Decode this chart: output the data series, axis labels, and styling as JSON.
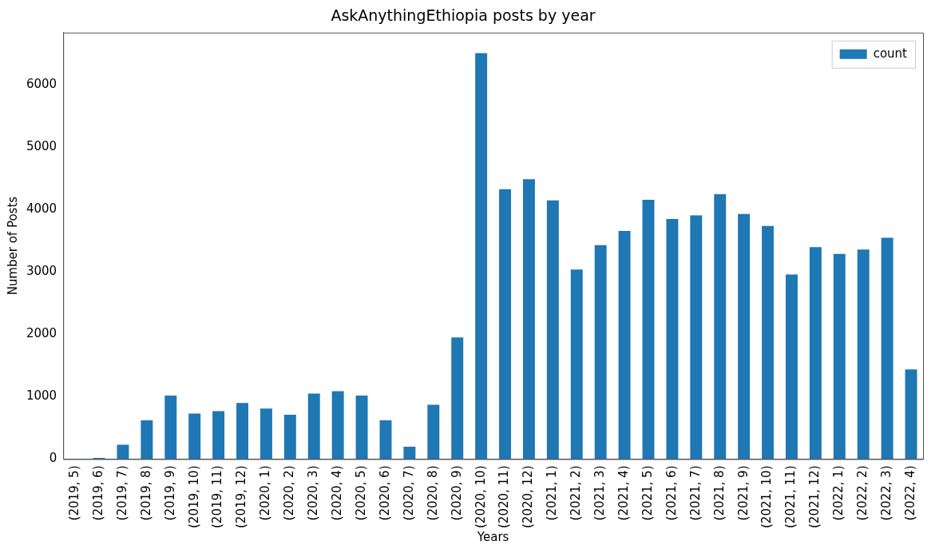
{
  "chart_data": {
    "type": "bar",
    "title": "AskAnythingEthiopia posts by year",
    "xlabel": "Years",
    "ylabel": "Number of Posts",
    "categories": [
      "(2019, 5)",
      "(2019, 6)",
      "(2019, 7)",
      "(2019, 8)",
      "(2019, 9)",
      "(2019, 10)",
      "(2019, 11)",
      "(2019, 12)",
      "(2020, 1)",
      "(2020, 2)",
      "(2020, 3)",
      "(2020, 4)",
      "(2020, 5)",
      "(2020, 6)",
      "(2020, 7)",
      "(2020, 8)",
      "(2020, 9)",
      "(2020, 10)",
      "(2020, 11)",
      "(2020, 12)",
      "(2021, 1)",
      "(2021, 2)",
      "(2021, 3)",
      "(2021, 4)",
      "(2021, 5)",
      "(2021, 6)",
      "(2021, 7)",
      "(2021, 8)",
      "(2021, 9)",
      "(2021, 10)",
      "(2021, 11)",
      "(2021, 12)",
      "(2022, 1)",
      "(2022, 2)",
      "(2022, 3)",
      "(2022, 4)"
    ],
    "series": [
      {
        "name": "count",
        "color": "#1f77b4",
        "values": [
          0,
          20,
          230,
          620,
          1020,
          730,
          770,
          900,
          810,
          710,
          1050,
          1090,
          1020,
          620,
          200,
          870,
          1950,
          6510,
          4330,
          4490,
          4150,
          3040,
          3430,
          3660,
          4160,
          3850,
          3910,
          4250,
          3930,
          3740,
          2960,
          3400,
          3290,
          3360,
          3550,
          1440
        ]
      }
    ],
    "ylim": [
      0,
      6840
    ],
    "yticks": [
      0,
      1000,
      2000,
      3000,
      4000,
      5000,
      6000
    ],
    "grid": false,
    "legend": "top right"
  }
}
